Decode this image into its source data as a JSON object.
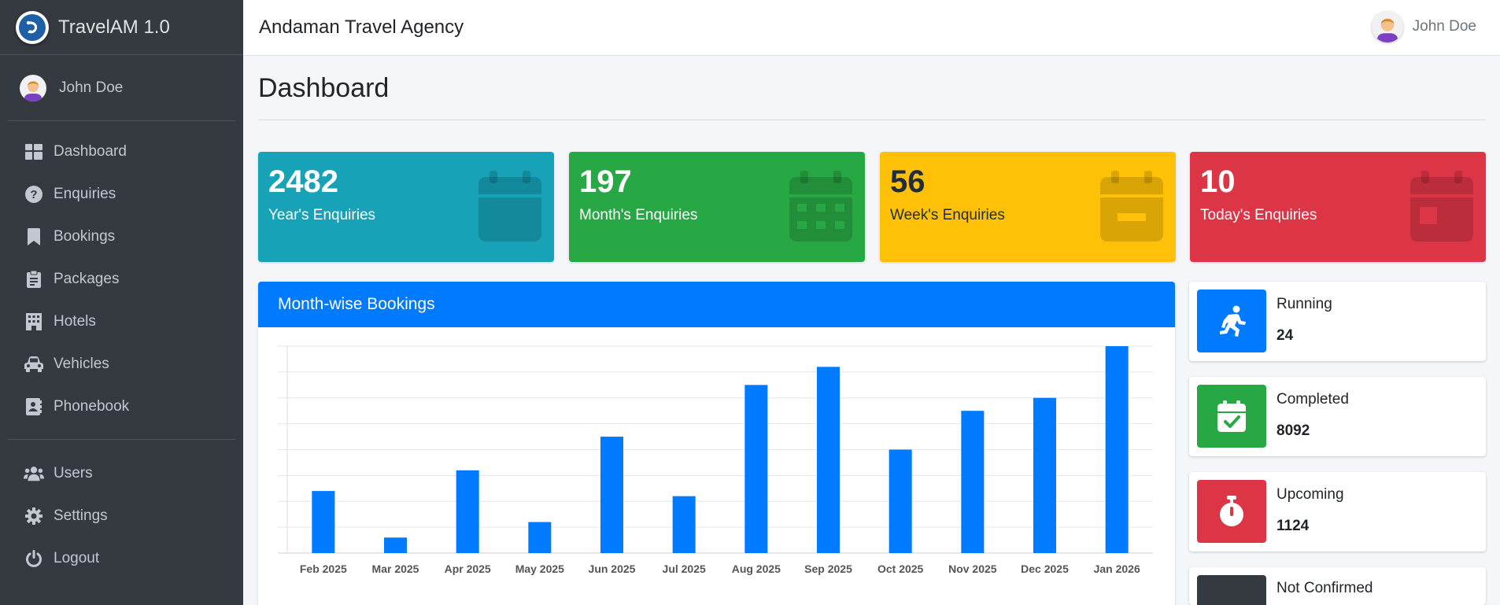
{
  "app": {
    "name": "TravelAM 1.0"
  },
  "sidebar": {
    "user_name": "John Doe",
    "items": [
      {
        "label": "Dashboard",
        "icon": "dashboard-icon"
      },
      {
        "label": "Enquiries",
        "icon": "question-circle-icon"
      },
      {
        "label": "Bookings",
        "icon": "bookmark-icon"
      },
      {
        "label": "Packages",
        "icon": "clipboard-icon"
      },
      {
        "label": "Hotels",
        "icon": "building-icon"
      },
      {
        "label": "Vehicles",
        "icon": "car-icon"
      },
      {
        "label": "Phonebook",
        "icon": "address-book-icon"
      }
    ],
    "bottom_items": [
      {
        "label": "Users",
        "icon": "users-icon"
      },
      {
        "label": "Settings",
        "icon": "gear-icon"
      },
      {
        "label": "Logout",
        "icon": "power-icon"
      }
    ]
  },
  "topbar": {
    "title": "Andaman Travel Agency",
    "user_name": "John Doe"
  },
  "page": {
    "title": "Dashboard"
  },
  "stats": [
    {
      "value": "2482",
      "label": "Year's Enquiries",
      "color": "#17a2b8",
      "icon": "calendar-icon"
    },
    {
      "value": "197",
      "label": "Month's Enquiries",
      "color": "#28a745",
      "icon": "calendar-grid-icon"
    },
    {
      "value": "56",
      "label": "Week's Enquiries",
      "color": "#ffc107",
      "icon": "calendar-week-icon"
    },
    {
      "value": "10",
      "label": "Today's Enquiries",
      "color": "#dc3545",
      "icon": "calendar-day-icon"
    }
  ],
  "info": [
    {
      "title": "Running",
      "value": "24",
      "color": "#007bff",
      "icon": "running-icon"
    },
    {
      "title": "Completed",
      "value": "8092",
      "color": "#28a745",
      "icon": "calendar-check-icon"
    },
    {
      "title": "Upcoming",
      "value": "1124",
      "color": "#dc3545",
      "icon": "stopwatch-icon"
    },
    {
      "title": "Not Confirmed",
      "value": "",
      "color": "#343a40",
      "icon": "user-icon"
    }
  ],
  "chart_card": {
    "title": "Month-wise Bookings"
  },
  "chart_data": {
    "type": "bar",
    "title": "Month-wise Bookings",
    "categories": [
      "Feb 2025",
      "Mar 2025",
      "Apr 2025",
      "May 2025",
      "Jun 2025",
      "Jul 2025",
      "Aug 2025",
      "Sep 2025",
      "Oct 2025",
      "Nov 2025",
      "Dec 2025",
      "Jan 2026"
    ],
    "values": [
      24,
      6,
      32,
      12,
      45,
      22,
      65,
      72,
      40,
      55,
      60,
      80
    ],
    "ylim": [
      0,
      80
    ],
    "grid": true,
    "color": "#007bff"
  }
}
